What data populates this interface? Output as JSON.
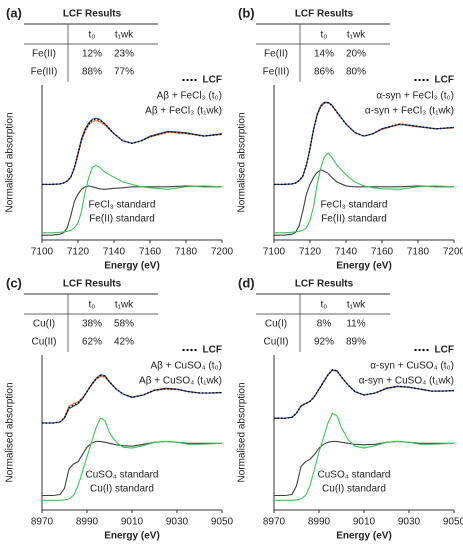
{
  "chart_data": [
    {
      "type": "line",
      "panel_label": "(a)",
      "table": {
        "title": "LCF Results",
        "columns": [
          "t₀",
          "t₁wk"
        ],
        "rows": [
          [
            "Fe(II)",
            "12%",
            "23%"
          ],
          [
            "Fe(III)",
            "88%",
            "77%"
          ]
        ]
      },
      "xlabel": "Energy (eV)",
      "ylabel": "Normalised absorption",
      "xlim": [
        7100,
        7200
      ],
      "xticks": [
        7100,
        7120,
        7140,
        7160,
        7180,
        7200
      ],
      "ylim": [
        0,
        3
      ],
      "x": [
        7100,
        7105,
        7110,
        7112,
        7114,
        7116,
        7118,
        7120,
        7122,
        7124,
        7126,
        7128,
        7130,
        7132,
        7135,
        7140,
        7145,
        7150,
        7155,
        7160,
        7170,
        7180,
        7190,
        7200
      ],
      "series": [
        {
          "name": "LCF",
          "color": "#000000",
          "style": "dotted",
          "values": [
            1.15,
            1.15,
            1.16,
            1.18,
            1.22,
            1.3,
            1.5,
            1.78,
            2.08,
            2.28,
            2.4,
            2.48,
            2.5,
            2.48,
            2.4,
            2.2,
            2.05,
            2.0,
            2.05,
            2.14,
            2.24,
            2.21,
            2.15,
            2.19
          ]
        },
        {
          "name": "Aβ + FeCl₃ (t₀)",
          "color": "#1f3f99",
          "style": "solid",
          "values": [
            1.15,
            1.15,
            1.16,
            1.18,
            1.22,
            1.3,
            1.5,
            1.8,
            2.1,
            2.3,
            2.42,
            2.5,
            2.52,
            2.5,
            2.4,
            2.2,
            2.05,
            2.0,
            2.05,
            2.15,
            2.25,
            2.22,
            2.15,
            2.2
          ]
        },
        {
          "name": "Aβ + FeCl₃ (t₁wk)",
          "color": "#ed7d31",
          "style": "solid",
          "values": [
            1.15,
            1.15,
            1.16,
            1.18,
            1.22,
            1.3,
            1.48,
            1.75,
            2.05,
            2.25,
            2.38,
            2.45,
            2.47,
            2.45,
            2.37,
            2.2,
            2.05,
            2.0,
            2.05,
            2.13,
            2.23,
            2.2,
            2.15,
            2.18
          ]
        },
        {
          "name": "FeCl₃ standard",
          "color": "#3cc35a",
          "style": "solid",
          "values": [
            0.15,
            0.15,
            0.16,
            0.17,
            0.18,
            0.2,
            0.25,
            0.35,
            0.6,
            1.0,
            1.3,
            1.5,
            1.55,
            1.5,
            1.4,
            1.3,
            1.2,
            1.15,
            1.1,
            1.08,
            1.05,
            1.1,
            1.12,
            1.1
          ]
        },
        {
          "name": "Fe(II) standard",
          "color": "#404040",
          "style": "solid",
          "values": [
            0.1,
            0.1,
            0.12,
            0.15,
            0.25,
            0.5,
            0.8,
            0.95,
            1.05,
            1.1,
            1.12,
            1.1,
            1.08,
            1.06,
            1.05,
            1.07,
            1.08,
            1.1,
            1.1,
            1.1,
            1.1,
            1.12,
            1.1,
            1.1
          ]
        }
      ]
    },
    {
      "type": "line",
      "panel_label": "(b)",
      "table": {
        "title": "LCF Results",
        "columns": [
          "t₀",
          "t₁wk"
        ],
        "rows": [
          [
            "Fe(II)",
            "14%",
            "20%"
          ],
          [
            "Fe(III)",
            "86%",
            "80%"
          ]
        ]
      },
      "xlabel": "Energy (eV)",
      "ylabel": "Normalised absorption",
      "xlim": [
        7100,
        7200
      ],
      "xticks": [
        7100,
        7120,
        7140,
        7160,
        7180,
        7200
      ],
      "ylim": [
        0,
        3
      ],
      "x": [
        7100,
        7105,
        7110,
        7112,
        7114,
        7116,
        7118,
        7120,
        7122,
        7124,
        7126,
        7128,
        7130,
        7132,
        7135,
        7140,
        7145,
        7150,
        7155,
        7160,
        7170,
        7180,
        7190,
        7200
      ],
      "series": [
        {
          "name": "LCF",
          "color": "#000000",
          "style": "dotted",
          "values": [
            1.15,
            1.15,
            1.16,
            1.18,
            1.23,
            1.32,
            1.55,
            1.89,
            2.29,
            2.59,
            2.77,
            2.84,
            2.84,
            2.79,
            2.64,
            2.4,
            2.22,
            2.15,
            2.2,
            2.3,
            2.4,
            2.35,
            2.3,
            2.33
          ]
        },
        {
          "name": "α-syn + FeCl₃ (t₀)",
          "color": "#1f3f99",
          "style": "solid",
          "values": [
            1.15,
            1.15,
            1.16,
            1.18,
            1.23,
            1.32,
            1.55,
            1.9,
            2.3,
            2.6,
            2.78,
            2.85,
            2.85,
            2.8,
            2.65,
            2.4,
            2.22,
            2.15,
            2.2,
            2.3,
            2.4,
            2.35,
            2.3,
            2.33
          ]
        },
        {
          "name": "α-syn + FeCl₃ (t₁wk)",
          "color": "#ed7d31",
          "style": "solid",
          "values": [
            1.15,
            1.15,
            1.16,
            1.18,
            1.23,
            1.32,
            1.55,
            1.88,
            2.28,
            2.58,
            2.76,
            2.83,
            2.84,
            2.79,
            2.64,
            2.4,
            2.22,
            2.15,
            2.2,
            2.29,
            2.39,
            2.34,
            2.3,
            2.32
          ]
        },
        {
          "name": "FeCl₃ standard",
          "color": "#3cc35a",
          "style": "solid",
          "values": [
            0.15,
            0.15,
            0.16,
            0.17,
            0.18,
            0.2,
            0.25,
            0.4,
            0.7,
            1.15,
            1.5,
            1.72,
            1.8,
            1.72,
            1.55,
            1.35,
            1.2,
            1.12,
            1.08,
            1.06,
            1.05,
            1.1,
            1.12,
            1.1
          ]
        },
        {
          "name": "Fe(II) standard",
          "color": "#404040",
          "style": "solid",
          "values": [
            0.1,
            0.1,
            0.12,
            0.16,
            0.3,
            0.6,
            0.95,
            1.15,
            1.3,
            1.4,
            1.45,
            1.42,
            1.38,
            1.3,
            1.2,
            1.12,
            1.1,
            1.1,
            1.1,
            1.1,
            1.1,
            1.12,
            1.1,
            1.1
          ]
        }
      ]
    },
    {
      "type": "line",
      "panel_label": "(c)",
      "table": {
        "title": "LCF Results",
        "columns": [
          "t₀",
          "t₁wk"
        ],
        "rows": [
          [
            "Cu(I)",
            "38%",
            "58%"
          ],
          [
            "Cu(II)",
            "62%",
            "42%"
          ]
        ]
      },
      "xlabel": "Energy (eV)",
      "ylabel": "Normalised absorption",
      "xlim": [
        8970,
        9050
      ],
      "xticks": [
        8970,
        8990,
        9010,
        9030,
        9050
      ],
      "ylim": [
        0,
        3
      ],
      "x": [
        8970,
        8975,
        8978,
        8980,
        8982,
        8984,
        8986,
        8988,
        8990,
        8992,
        8994,
        8996,
        8998,
        9000,
        9003,
        9006,
        9010,
        9015,
        9020,
        9025,
        9030,
        9035,
        9040,
        9045,
        9050
      ],
      "series": [
        {
          "name": "LCF",
          "color": "#000000",
          "style": "dotted",
          "values": [
            1.8,
            1.8,
            1.82,
            1.91,
            2.12,
            2.17,
            2.22,
            2.31,
            2.45,
            2.59,
            2.71,
            2.78,
            2.77,
            2.65,
            2.5,
            2.4,
            2.33,
            2.38,
            2.48,
            2.51,
            2.5,
            2.45,
            2.42,
            2.42,
            2.43
          ]
        },
        {
          "name": "Aβ + CuSO₄ (t₀)",
          "color": "#1f3f99",
          "style": "solid",
          "values": [
            1.8,
            1.8,
            1.82,
            1.9,
            2.1,
            2.15,
            2.2,
            2.3,
            2.45,
            2.6,
            2.72,
            2.8,
            2.78,
            2.65,
            2.5,
            2.4,
            2.33,
            2.38,
            2.48,
            2.52,
            2.5,
            2.45,
            2.42,
            2.42,
            2.43
          ]
        },
        {
          "name": "Aβ + CuSO₄ (t₁wk)",
          "color": "#ed7d31",
          "style": "solid",
          "values": [
            1.8,
            1.8,
            1.82,
            1.92,
            2.15,
            2.2,
            2.24,
            2.32,
            2.45,
            2.58,
            2.7,
            2.76,
            2.75,
            2.64,
            2.5,
            2.4,
            2.34,
            2.38,
            2.47,
            2.5,
            2.49,
            2.45,
            2.42,
            2.42,
            2.43
          ]
        },
        {
          "name": "CuSO₄ standard",
          "color": "#3cc35a",
          "style": "solid",
          "values": [
            0.2,
            0.2,
            0.2,
            0.21,
            0.23,
            0.3,
            0.5,
            0.8,
            1.1,
            1.4,
            1.7,
            1.9,
            1.85,
            1.6,
            1.4,
            1.3,
            1.28,
            1.33,
            1.4,
            1.42,
            1.4,
            1.36,
            1.36,
            1.37,
            1.38
          ]
        },
        {
          "name": "Cu(I) standard",
          "color": "#404040",
          "style": "solid",
          "values": [
            0.3,
            0.3,
            0.32,
            0.45,
            0.85,
            0.95,
            1.0,
            1.15,
            1.3,
            1.38,
            1.42,
            1.42,
            1.4,
            1.38,
            1.35,
            1.33,
            1.32,
            1.36,
            1.4,
            1.42,
            1.4,
            1.38,
            1.38,
            1.38,
            1.38
          ]
        }
      ]
    },
    {
      "type": "line",
      "panel_label": "(d)",
      "table": {
        "title": "LCF Results",
        "columns": [
          "t₀",
          "t₁wk"
        ],
        "rows": [
          [
            "Cu(I)",
            "8%",
            "11%"
          ],
          [
            "Cu(II)",
            "92%",
            "89%"
          ]
        ]
      },
      "xlabel": "Energy (eV)",
      "ylabel": "Normalised absorption",
      "xlim": [
        8970,
        9050
      ],
      "xticks": [
        8970,
        8990,
        9010,
        9030,
        9050
      ],
      "ylim": [
        0,
        3
      ],
      "x": [
        8970,
        8975,
        8978,
        8980,
        8982,
        8984,
        8986,
        8988,
        8990,
        8992,
        8994,
        8996,
        8998,
        9000,
        9003,
        9006,
        9010,
        9015,
        9020,
        9025,
        9030,
        9035,
        9040,
        9045,
        9050
      ],
      "series": [
        {
          "name": "LCF",
          "color": "#000000",
          "style": "dotted",
          "values": [
            1.9,
            1.9,
            1.92,
            2.0,
            2.15,
            2.2,
            2.25,
            2.35,
            2.5,
            2.65,
            2.8,
            2.9,
            2.88,
            2.75,
            2.58,
            2.45,
            2.38,
            2.42,
            2.52,
            2.56,
            2.54,
            2.5,
            2.46,
            2.46,
            2.47
          ]
        },
        {
          "name": "α-syn + CuSO₄ (t₀)",
          "color": "#1f3f99",
          "style": "solid",
          "values": [
            1.9,
            1.9,
            1.92,
            2.0,
            2.15,
            2.2,
            2.25,
            2.35,
            2.5,
            2.65,
            2.8,
            2.9,
            2.88,
            2.75,
            2.58,
            2.45,
            2.38,
            2.42,
            2.52,
            2.56,
            2.54,
            2.5,
            2.46,
            2.46,
            2.47
          ]
        },
        {
          "name": "α-syn + CuSO₄ (t₁wk)",
          "color": "#ed7d31",
          "style": "solid",
          "values": [
            1.9,
            1.9,
            1.92,
            2.01,
            2.16,
            2.21,
            2.25,
            2.35,
            2.49,
            2.64,
            2.79,
            2.89,
            2.87,
            2.75,
            2.58,
            2.45,
            2.38,
            2.42,
            2.51,
            2.55,
            2.54,
            2.5,
            2.46,
            2.46,
            2.47
          ]
        },
        {
          "name": "CuSO₄ standard",
          "color": "#3cc35a",
          "style": "solid",
          "values": [
            0.2,
            0.2,
            0.2,
            0.21,
            0.23,
            0.3,
            0.5,
            0.85,
            1.2,
            1.5,
            1.8,
            2.0,
            1.95,
            1.7,
            1.45,
            1.32,
            1.28,
            1.33,
            1.4,
            1.42,
            1.4,
            1.36,
            1.36,
            1.37,
            1.38
          ]
        },
        {
          "name": "Cu(I) standard",
          "color": "#404040",
          "style": "solid",
          "values": [
            0.3,
            0.3,
            0.32,
            0.5,
            0.9,
            1.0,
            1.05,
            1.15,
            1.28,
            1.36,
            1.4,
            1.42,
            1.42,
            1.4,
            1.38,
            1.36,
            1.35,
            1.36,
            1.4,
            1.42,
            1.4,
            1.38,
            1.38,
            1.38,
            1.38
          ]
        }
      ]
    }
  ]
}
